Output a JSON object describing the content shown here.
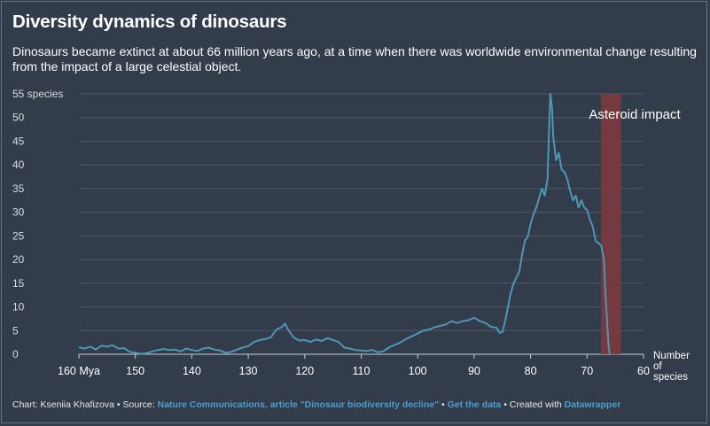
{
  "title": "Diversity dynamics of dinosaurs",
  "subtitle": "Dinosaurs became extinct at about 66 million years ago, at a time when there was worldwide environmental change resulting from the impact of a large celestial object.",
  "footer": {
    "chart_by": "Chart: Kseniia Khafizova",
    "source_prefix": "• Source:",
    "source_link": "Nature Communications, article \"Dinosaur biodiversity decline\"",
    "sep1": "•",
    "data_link": "Get the data",
    "created_prefix": "• Created with",
    "tool_link": "Datawrapper"
  },
  "colors": {
    "background": "#333c4b",
    "line": "#4d97b5",
    "impact_band": "#7b3a3e",
    "grid": "#4f5867",
    "text": "#ffffff",
    "link": "#4a9fd0"
  },
  "chart_data": {
    "type": "line",
    "title": "Diversity dynamics of dinosaurs",
    "xlabel": "Number of species",
    "ylabel": "",
    "xlim": [
      160,
      60
    ],
    "ylim": [
      0,
      55
    ],
    "x_ticks": [
      160,
      150,
      140,
      130,
      120,
      110,
      100,
      90,
      80,
      70,
      60
    ],
    "x_tick_labels": [
      "160 Mya",
      "150",
      "140",
      "130",
      "120",
      "110",
      "100",
      "90",
      "80",
      "70",
      "60"
    ],
    "x_axis_label_lines": [
      "Number",
      "of",
      "species"
    ],
    "y_ticks": [
      0,
      5,
      10,
      15,
      20,
      25,
      30,
      35,
      40,
      45,
      50,
      55
    ],
    "y_tick_labels": [
      "0",
      "5",
      "10",
      "15",
      "20",
      "25",
      "30",
      "35",
      "40",
      "45",
      "50",
      "55 species"
    ],
    "grid": true,
    "annotation": {
      "label": "Asteroid impact",
      "x_from": 67.5,
      "x_to": 64
    },
    "series": [
      {
        "x": [
          160,
          159,
          158,
          157,
          156,
          155,
          154,
          153,
          152,
          151,
          150,
          149,
          148,
          147,
          146,
          145,
          144,
          143,
          142,
          141,
          140,
          139,
          138,
          137,
          136,
          135,
          134,
          133,
          132,
          131,
          130,
          129,
          128,
          127,
          126,
          125,
          124,
          123.5,
          123,
          122,
          121,
          120,
          119,
          118,
          117,
          116,
          115,
          114,
          113,
          112,
          111,
          110,
          109,
          108,
          107,
          106,
          105,
          104,
          103,
          102,
          101,
          100,
          99,
          98,
          97,
          96,
          95,
          94,
          93,
          92,
          91,
          90,
          89,
          88,
          87,
          86,
          85.5,
          85,
          84.5,
          84,
          83.5,
          83,
          82,
          81.5,
          81,
          80.5,
          80,
          79.5,
          79,
          78.5,
          78,
          77.5,
          77,
          76.8,
          76.5,
          76.2,
          76,
          75.5,
          75,
          74.5,
          74,
          73.5,
          73,
          72.5,
          72,
          71.5,
          71,
          70.5,
          70,
          69.5,
          69,
          68.5,
          68,
          67.5,
          67,
          66.8,
          66.5,
          66.2,
          66
        ],
        "values": [
          1.5,
          1.2,
          1.6,
          1.0,
          1.8,
          1.6,
          1.9,
          1.2,
          1.3,
          0.5,
          0.3,
          0.1,
          0.2,
          0.6,
          0.9,
          1.1,
          0.9,
          1.0,
          0.6,
          1.2,
          0.9,
          0.7,
          1.2,
          1.4,
          1.0,
          0.8,
          0.3,
          0.5,
          1.0,
          1.4,
          1.7,
          2.6,
          3.0,
          3.2,
          3.6,
          5.2,
          5.8,
          6.5,
          5.3,
          3.6,
          2.9,
          3.0,
          2.6,
          3.1,
          2.8,
          3.4,
          3.0,
          2.6,
          1.4,
          1.2,
          0.9,
          0.8,
          0.7,
          0.9,
          0.4,
          0.7,
          1.5,
          2.0,
          2.5,
          3.3,
          3.8,
          4.4,
          5.0,
          5.2,
          5.7,
          6.0,
          6.3,
          7.0,
          6.6,
          7.0,
          7.2,
          7.7,
          7.0,
          6.6,
          5.8,
          5.6,
          4.5,
          4.7,
          7.0,
          10.0,
          13.0,
          15.0,
          17.5,
          21.0,
          24.0,
          24.8,
          27.5,
          29.5,
          31.0,
          33.0,
          35.0,
          33.5,
          37.0,
          45.0,
          55.0,
          52.0,
          46.0,
          41.0,
          42.5,
          39.0,
          38.5,
          37.0,
          34.5,
          32.5,
          33.5,
          31.0,
          32.5,
          31.0,
          30.5,
          28.5,
          27.0,
          24.0,
          23.5,
          23.0,
          20.0,
          14.0,
          8.0,
          2.0,
          0
        ]
      }
    ]
  }
}
